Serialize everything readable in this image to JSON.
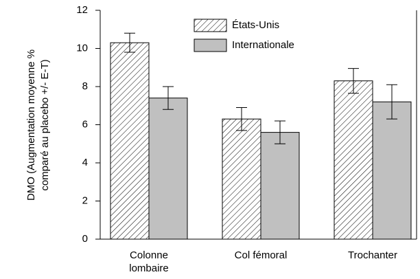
{
  "chart_data": {
    "type": "bar",
    "y_label": [
      "DMO (Augmentation moyenne %",
      "comparé au placebo +/- E-T)"
    ],
    "categories": [
      "Colonne\nlombaire",
      "Col fémoral",
      "Trochanter"
    ],
    "series": [
      {
        "name": "États-Unis",
        "color": "#ffffff",
        "hatch": true,
        "values": [
          10.3,
          6.3,
          8.3
        ],
        "errors": [
          0.5,
          0.6,
          0.65
        ]
      },
      {
        "name": "Internationale",
        "color": "#c0c0c0",
        "hatch": false,
        "values": [
          7.4,
          5.6,
          7.2
        ],
        "errors": [
          0.6,
          0.6,
          0.9
        ]
      }
    ],
    "ylim": [
      0,
      12
    ],
    "yticks": [
      0,
      2,
      4,
      6,
      8,
      10,
      12
    ],
    "grid": false,
    "legend": "top"
  }
}
